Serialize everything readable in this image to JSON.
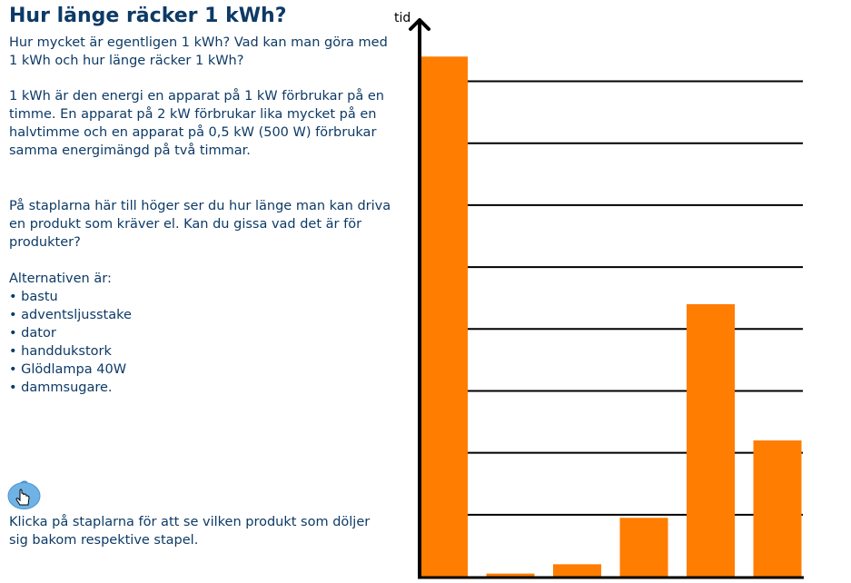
{
  "page": {
    "title": "Hur länge räcker 1 kWh?",
    "intro": "Hur mycket är egentligen 1 kWh? Vad kan man göra med 1 kWh och hur länge räcker 1 kWh?",
    "explanation": "1 kWh är den energi en apparat på 1 kW förbrukar på en timme. En apparat på 2 kW förbrukar lika mycket på en halvtimme och en apparat på 0,5 kW (500 W) förbrukar samma energimängd på två timmar.",
    "question": "På staplarna här till höger ser du hur länge man kan driva en produkt som kräver el. Kan du gissa vad det är för produkter?",
    "options_heading": "Alternativen är:",
    "options": [
      "bastu",
      "adventsljusstake",
      "dator",
      "handdukstork",
      "Glödlampa 40W",
      "dammsugare."
    ],
    "instruction": "Klicka på staplarna för att se vilken produkt som döljer sig bakom respektive stapel."
  },
  "icons": {
    "hint": "hand-pointer-icon"
  },
  "colors": {
    "bar": "#ff7d00",
    "text": "#0d3a66",
    "hint_icon": "#6fb3e6",
    "axis": "#000000"
  },
  "chart_data": {
    "type": "bar",
    "ylabel": "tid",
    "categories": [
      "",
      "",
      "",
      "",
      "",
      ""
    ],
    "values": [
      8.4,
      0.05,
      0.2,
      0.95,
      4.4,
      2.2
    ],
    "ylim": [
      0,
      8.8
    ],
    "gridlines": [
      1,
      2,
      3,
      4,
      5,
      6,
      7,
      8
    ],
    "grid": true,
    "tick_labels": false
  }
}
